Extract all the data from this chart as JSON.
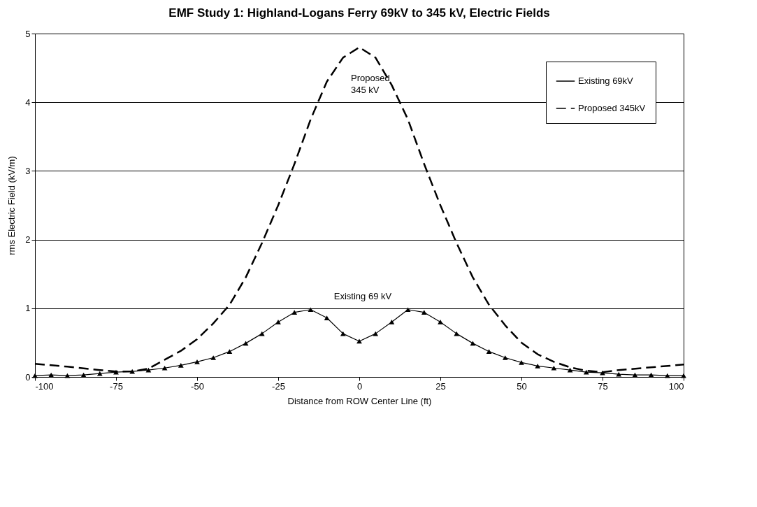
{
  "chart_data": {
    "type": "line",
    "title": "EMF Study 1: Highland-Logans Ferry 69kV to 345 kV, Electric Fields",
    "xlabel": "Distance from ROW Center Line (ft)",
    "ylabel": "rms Electric Field (kV/m)",
    "xlim": [
      -100,
      100
    ],
    "xticks": [
      -100,
      -75,
      -50,
      -25,
      0,
      25,
      50,
      75,
      100
    ],
    "ylim": [
      0,
      5
    ],
    "yticks": [
      0,
      1,
      2,
      3,
      4,
      5
    ],
    "grid": "y",
    "legend": "top right",
    "annotations": [
      "Existing 69 kV",
      "Proposed\n345 kV"
    ],
    "series": [
      {
        "name": "Existing 69kV",
        "color": "#000000",
        "marker": "triangle",
        "line_style": "solid",
        "x": [
          -100,
          -95,
          -90,
          -85,
          -80,
          -75,
          -70,
          -65,
          -60,
          -55,
          -50,
          -45,
          -40,
          -35,
          -30,
          -25,
          -20,
          -15,
          -10,
          -5,
          0,
          5,
          10,
          15,
          20,
          25,
          30,
          35,
          40,
          45,
          50,
          55,
          60,
          65,
          70,
          75,
          80,
          85,
          90,
          95,
          100
        ],
        "values": [
          0.02,
          0.03,
          0.02,
          0.03,
          0.05,
          0.07,
          0.08,
          0.1,
          0.13,
          0.17,
          0.22,
          0.28,
          0.37,
          0.49,
          0.63,
          0.8,
          0.94,
          0.98,
          0.86,
          0.63,
          0.52,
          0.63,
          0.8,
          0.98,
          0.94,
          0.8,
          0.63,
          0.49,
          0.37,
          0.28,
          0.21,
          0.16,
          0.13,
          0.1,
          0.07,
          0.06,
          0.04,
          0.03,
          0.03,
          0.02,
          0.02
        ]
      },
      {
        "name": "Proposed 345kV",
        "color": "#000000",
        "marker": "none",
        "line_style": "dashed",
        "x": [
          -100,
          -90,
          -80,
          -75,
          -70,
          -65,
          -60,
          -55,
          -50,
          -45,
          -40,
          -35,
          -30,
          -25,
          -20,
          -15,
          -10,
          -5,
          0,
          5,
          10,
          15,
          20,
          25,
          30,
          35,
          40,
          45,
          50,
          55,
          60,
          65,
          70,
          75,
          80,
          90,
          100
        ],
        "values": [
          0.19,
          0.15,
          0.1,
          0.08,
          0.08,
          0.12,
          0.25,
          0.38,
          0.55,
          0.78,
          1.05,
          1.45,
          1.95,
          2.5,
          3.1,
          3.75,
          4.3,
          4.65,
          4.8,
          4.65,
          4.25,
          3.75,
          3.1,
          2.5,
          1.95,
          1.45,
          1.05,
          0.75,
          0.5,
          0.33,
          0.22,
          0.14,
          0.09,
          0.07,
          0.1,
          0.14,
          0.18
        ]
      }
    ]
  }
}
